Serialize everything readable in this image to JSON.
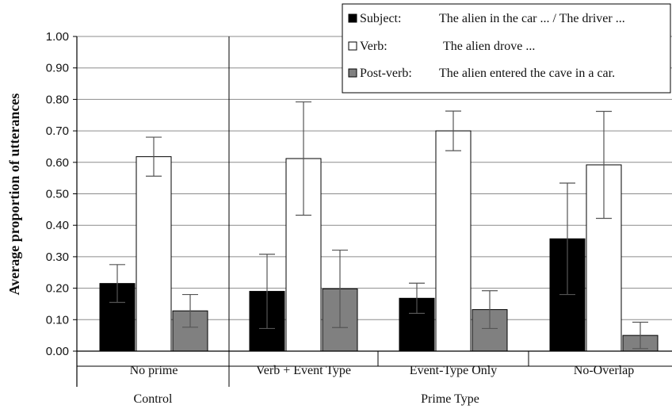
{
  "chart_data": {
    "type": "bar",
    "ylabel": "Average proportion of utterances",
    "xlabel": "",
    "ylim": [
      0,
      1
    ],
    "yticks": [
      "0.00",
      "0.10",
      "0.20",
      "0.30",
      "0.40",
      "0.50",
      "0.60",
      "0.70",
      "0.80",
      "0.90",
      "1.00"
    ],
    "categories": [
      "No prime",
      "Verb + Event Type",
      "Event-Type Only",
      "No-Overlap"
    ],
    "groups": [
      {
        "label": "Control",
        "categories": [
          "No prime"
        ]
      },
      {
        "label": "Prime Type",
        "categories": [
          "Verb + Event Type",
          "Event-Type Only",
          "No-Overlap"
        ]
      }
    ],
    "series": [
      {
        "name": "Subject:",
        "description": "The alien in the car ... / The driver ...",
        "color": "#000000",
        "values": [
          0.215,
          0.19,
          0.168,
          0.357
        ],
        "error": [
          0.06,
          0.118,
          0.048,
          0.177
        ]
      },
      {
        "name": "Verb:",
        "description": "The alien drove ...",
        "color": "#ffffff",
        "values": [
          0.618,
          0.612,
          0.7,
          0.592
        ],
        "error": [
          0.062,
          0.18,
          0.063,
          0.17
        ]
      },
      {
        "name": "Post-verb:",
        "description": "The alien entered the cave in a car.",
        "color": "#808080",
        "values": [
          0.128,
          0.198,
          0.132,
          0.05
        ],
        "error": [
          0.052,
          0.123,
          0.06,
          0.042
        ]
      }
    ],
    "legend_position": "top-right",
    "grid": "horizontal"
  }
}
